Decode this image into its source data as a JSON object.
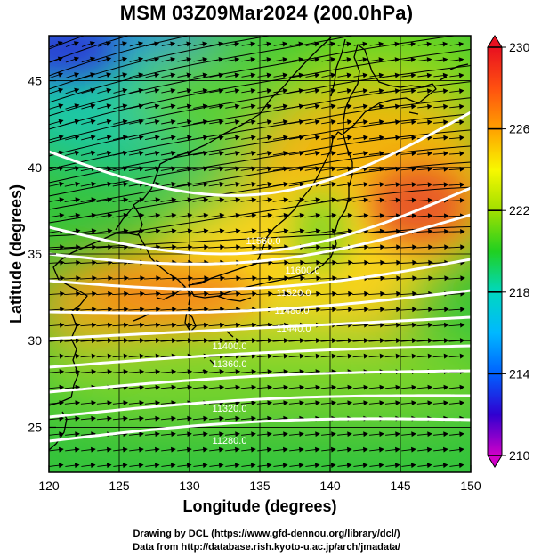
{
  "title": "MSM 03Z09Mar2024 (200.0hPa)",
  "credits": {
    "line1": "Drawing by DCL (https://www.gfd-dennou.org/library/dcl/)",
    "line2": "Data from http://database.rish.kyoto-u.ac.jp/arch/jmadata/"
  },
  "chart_data": {
    "type": "heatmap",
    "title": "MSM 03Z09Mar2024 (200.0hPa)",
    "xlabel": "Longitude (degrees)",
    "ylabel": "Latitude  (degrees)",
    "xlim": [
      120,
      150
    ],
    "ylim": [
      22.4,
      47.6
    ],
    "xticks": [
      "120",
      "125",
      "130",
      "135",
      "140",
      "145",
      "150"
    ],
    "yticks": [
      "25",
      "30",
      "35",
      "40",
      "45"
    ],
    "grid": true,
    "colorbar": {
      "range": [
        210,
        230
      ],
      "tick_labels": [
        "210",
        "214",
        "218",
        "222",
        "226",
        "230"
      ],
      "colors": [
        "#d000c8",
        "#3000d0",
        "#0060ff",
        "#00b8ff",
        "#00d8c0",
        "#20d020",
        "#a0e000",
        "#f8f800",
        "#ffa000",
        "#ff5010",
        "#e81020"
      ]
    },
    "contour_labels": [
      "11560.0",
      "11600.0",
      "11520.0",
      "11480.0",
      "11440.0",
      "11400.0",
      "11360.0",
      "11320.0",
      "11280.0"
    ]
  }
}
